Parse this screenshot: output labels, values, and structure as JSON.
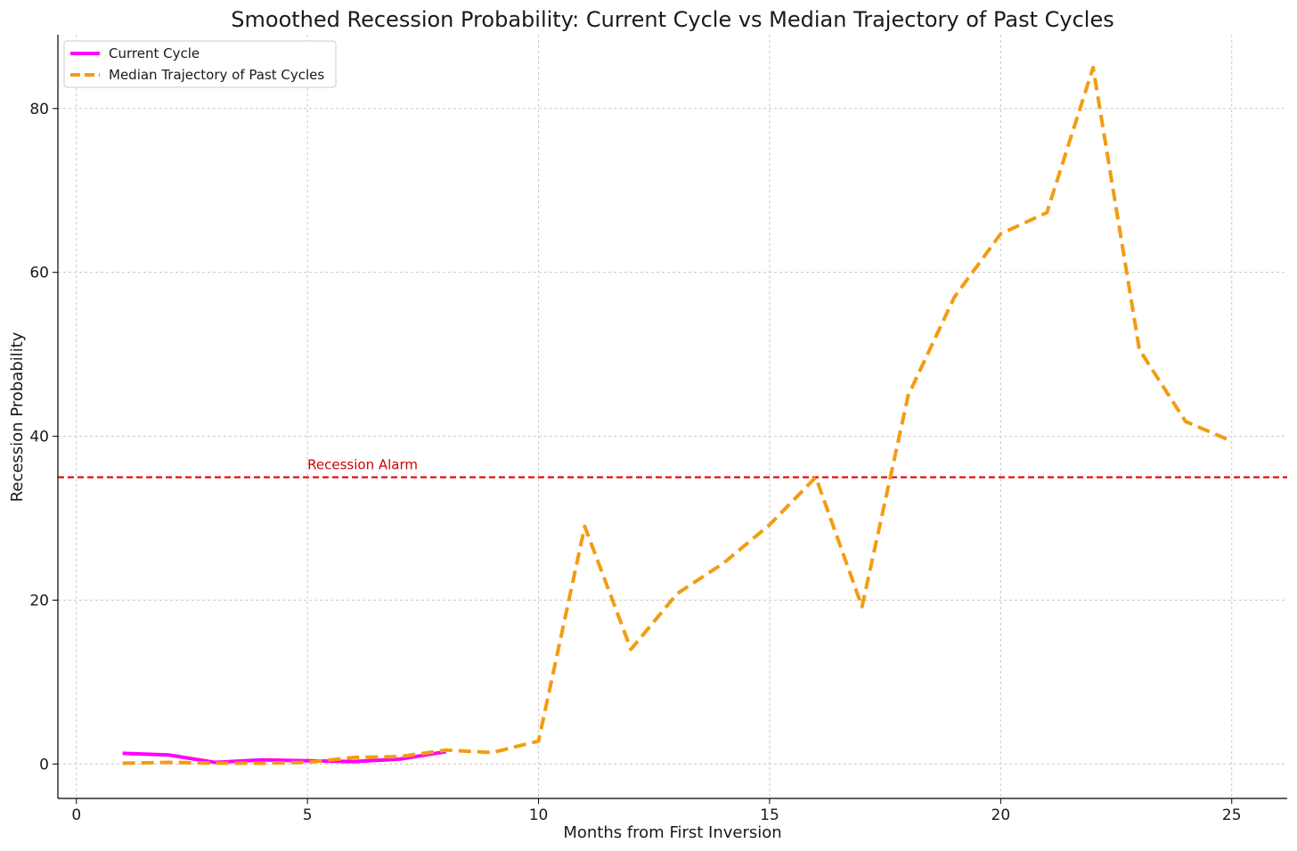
{
  "chart_data": {
    "type": "line",
    "title": "Smoothed Recession Probability: Current Cycle vs Median Trajectory of Past Cycles",
    "xlabel": "Months from First Inversion",
    "ylabel": "Recession Probability",
    "xlim": [
      -0.4,
      26.2
    ],
    "ylim": [
      -4.2,
      89
    ],
    "xticks": [
      0,
      5,
      10,
      15,
      20,
      25
    ],
    "yticks": [
      0,
      20,
      40,
      60,
      80
    ],
    "grid": true,
    "legend_position": "top-left",
    "series": [
      {
        "name": "Current Cycle",
        "color": "#ff00ff",
        "style": "solid",
        "x": [
          1,
          2,
          3,
          4,
          5,
          6,
          7,
          8
        ],
        "y": [
          1.3,
          1.1,
          0.2,
          0.5,
          0.4,
          0.3,
          0.6,
          1.5
        ]
      },
      {
        "name": "Median Trajectory of Past Cycles",
        "color": "#f39c12",
        "style": "dashed",
        "x": [
          1,
          2,
          3,
          4,
          5,
          6,
          7,
          8,
          9,
          10,
          11,
          12,
          13,
          14,
          15,
          16,
          17,
          18,
          19,
          20,
          21,
          22,
          23,
          24,
          25
        ],
        "y": [
          0.1,
          0.2,
          0.1,
          0.1,
          0.2,
          0.8,
          0.9,
          1.7,
          1.4,
          2.8,
          29.0,
          14.0,
          20.8,
          24.5,
          29.2,
          35.0,
          19.2,
          45.0,
          57.0,
          64.7,
          67.3,
          85.0,
          50.6,
          41.8,
          39.4
        ]
      }
    ],
    "reference_line": {
      "label": "Recession Alarm",
      "y": 35,
      "color": "#e60000",
      "label_x": 5
    }
  }
}
